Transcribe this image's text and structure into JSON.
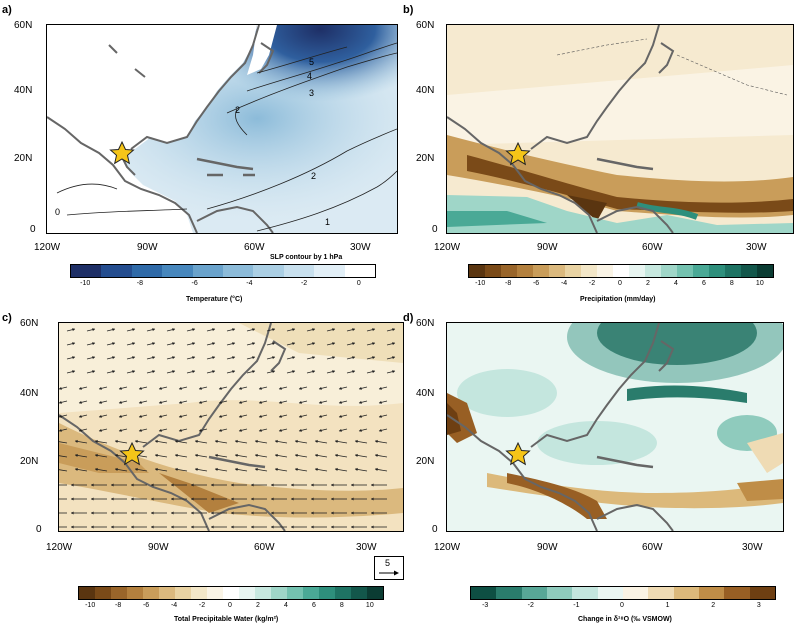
{
  "panels": [
    {
      "letter": "a)",
      "title": "Temperature (°C)",
      "subtitle": "SLP contour  by 1 hPa",
      "ticks": [
        "-10",
        "-8",
        "-6",
        "-4",
        "-2",
        "0"
      ],
      "contour_labels": [
        "5",
        "4",
        "3",
        "2",
        "2",
        "1",
        "0"
      ]
    },
    {
      "letter": "b)",
      "title": "Precipitation (mm/day)",
      "ticks": [
        "-10",
        "-8",
        "-6",
        "-4",
        "-2",
        "0",
        "2",
        "4",
        "6",
        "8",
        "10"
      ]
    },
    {
      "letter": "c)",
      "title": "Total Precipitable Water (kg/m²)",
      "vector_ref": "5",
      "ticks": [
        "-10",
        "-8",
        "-6",
        "-4",
        "-2",
        "0",
        "2",
        "4",
        "6",
        "8",
        "10"
      ]
    },
    {
      "letter": "d)",
      "title": "Change in δ¹⁸O (‰ VSMOW)",
      "ticks": [
        "-3",
        "-2",
        "-1",
        "0",
        "1",
        "2",
        "3"
      ]
    }
  ],
  "lat_labels": [
    "60N",
    "40N",
    "20N",
    "0"
  ],
  "lon_labels": [
    "120W",
    "90W",
    "60W",
    "30W"
  ],
  "colors": {
    "cold": [
      "#1e2f66",
      "#244d8f",
      "#2f6aa8",
      "#4787bd",
      "#6aa3cc",
      "#8cbbd9",
      "#abcfe4",
      "#c8e0ee",
      "#e2eff7",
      "#ffffff"
    ],
    "dry_wet": [
      "#5a3510",
      "#7a4a18",
      "#99652a",
      "#b3803e",
      "#c99d5a",
      "#dbb97e",
      "#e9d3a3",
      "#f3e7c8",
      "#faf4e6",
      "#ffffff",
      "#e8f5f1",
      "#c7e8df",
      "#9fd6c8",
      "#74c2b0",
      "#4aa996",
      "#2e8f7c",
      "#1e7363",
      "#13574b",
      "#0b3c33"
    ],
    "iso": [
      "#0e4f43",
      "#2a7c6c",
      "#58a797",
      "#8fcbbd",
      "#c4e6de",
      "#eaf6f2",
      "#faf3e4",
      "#efdbb4",
      "#dcb97b",
      "#bf8d47",
      "#985f24",
      "#6e3f12"
    ],
    "land_outline": "#666666",
    "star": "#f5c518"
  }
}
